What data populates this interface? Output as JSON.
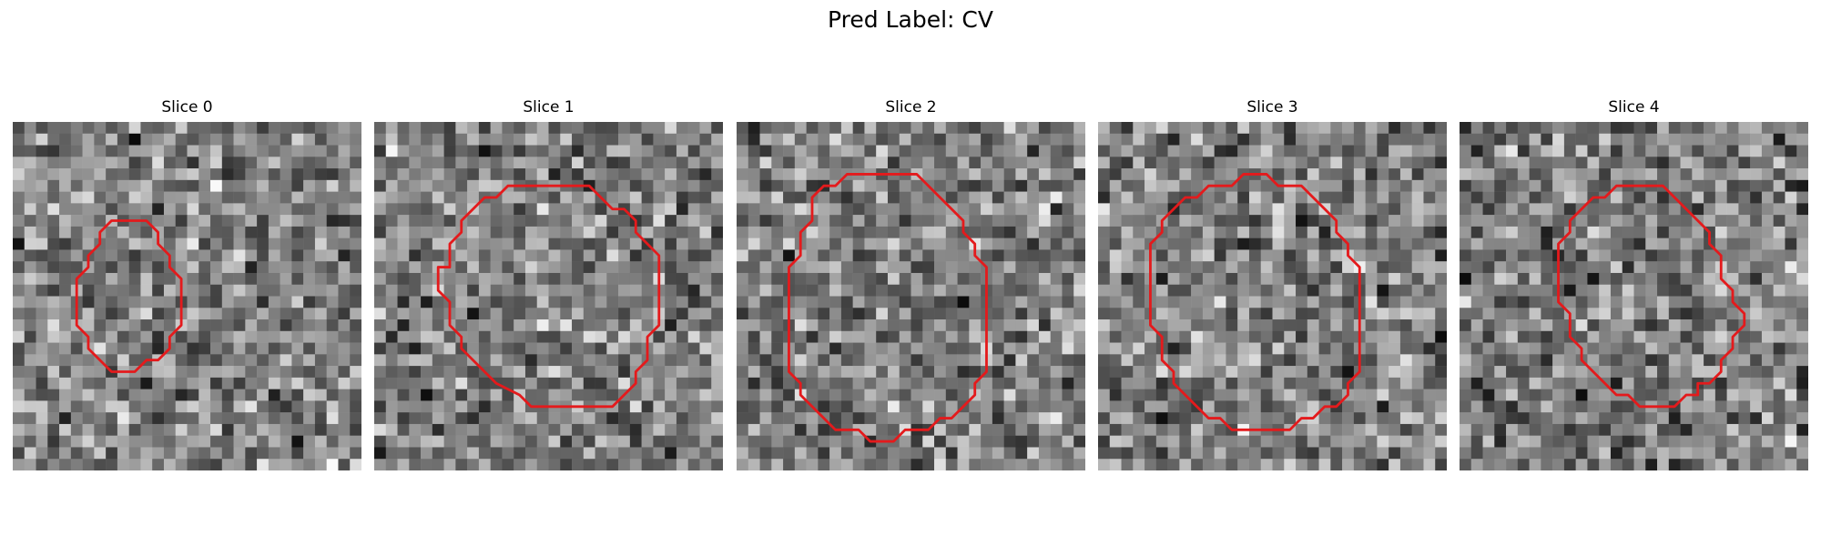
{
  "figure": {
    "suptitle": "Pred Label: CV",
    "contour_color": "#e41a1c",
    "panels": [
      {
        "title": "Slice 0",
        "seed": 11,
        "contour_vertices": [
          [
            10.5,
            8.5
          ],
          [
            11.5,
            8.5
          ],
          [
            12.5,
            9.5
          ],
          [
            12.5,
            10.5
          ],
          [
            13.5,
            11.5
          ],
          [
            13.5,
            12.5
          ],
          [
            14.5,
            13.5
          ],
          [
            14.5,
            17.5
          ],
          [
            13.5,
            18.5
          ],
          [
            13.5,
            19.5
          ],
          [
            12.5,
            20.5
          ],
          [
            11.5,
            20.5
          ],
          [
            10.5,
            21.5
          ],
          [
            8.5,
            21.5
          ],
          [
            7.5,
            20.5
          ],
          [
            6.5,
            19.5
          ],
          [
            6.5,
            18.5
          ],
          [
            5.5,
            17.5
          ],
          [
            5.5,
            13.5
          ],
          [
            6.5,
            12.5
          ],
          [
            6.5,
            11.5
          ],
          [
            7.5,
            10.5
          ],
          [
            7.5,
            9.5
          ],
          [
            8.5,
            8.5
          ]
        ]
      },
      {
        "title": "Slice 1",
        "seed": 23,
        "contour_vertices": [
          [
            12.5,
            5.5
          ],
          [
            18.5,
            5.5
          ],
          [
            19.5,
            6.5
          ],
          [
            20.5,
            7.5
          ],
          [
            21.5,
            7.5
          ],
          [
            22.5,
            8.5
          ],
          [
            22.5,
            9.5
          ],
          [
            23.5,
            10.5
          ],
          [
            24.5,
            11.5
          ],
          [
            24.5,
            17.5
          ],
          [
            23.5,
            18.5
          ],
          [
            23.5,
            20.5
          ],
          [
            22.5,
            21.5
          ],
          [
            22.5,
            22.5
          ],
          [
            21.5,
            23.5
          ],
          [
            20.5,
            24.5
          ],
          [
            13.5,
            24.5
          ],
          [
            12.5,
            23.5
          ],
          [
            10.5,
            22.5
          ],
          [
            8.5,
            20.5
          ],
          [
            7.5,
            19.5
          ],
          [
            7.5,
            18.5
          ],
          [
            6.5,
            17.5
          ],
          [
            6.5,
            15.5
          ],
          [
            5.5,
            14.5
          ],
          [
            5.5,
            12.5
          ],
          [
            6.5,
            12.5
          ],
          [
            6.5,
            10.5
          ],
          [
            7.5,
            9.5
          ],
          [
            7.5,
            8.5
          ],
          [
            9.5,
            6.5
          ],
          [
            10.5,
            6.5
          ],
          [
            11.5,
            5.5
          ]
        ]
      },
      {
        "title": "Slice 2",
        "seed": 37,
        "contour_vertices": [
          [
            9.5,
            4.5
          ],
          [
            15.5,
            4.5
          ],
          [
            16.5,
            5.5
          ],
          [
            17.5,
            6.5
          ],
          [
            18.5,
            7.5
          ],
          [
            19.5,
            8.5
          ],
          [
            19.5,
            9.5
          ],
          [
            20.5,
            10.5
          ],
          [
            20.5,
            11.5
          ],
          [
            21.5,
            12.5
          ],
          [
            21.5,
            21.5
          ],
          [
            20.5,
            22.5
          ],
          [
            20.5,
            23.5
          ],
          [
            19.5,
            24.5
          ],
          [
            18.5,
            25.5
          ],
          [
            17.5,
            25.5
          ],
          [
            16.5,
            26.5
          ],
          [
            14.5,
            26.5
          ],
          [
            13.5,
            27.5
          ],
          [
            11.5,
            27.5
          ],
          [
            10.5,
            26.5
          ],
          [
            8.5,
            26.5
          ],
          [
            7.5,
            25.5
          ],
          [
            6.5,
            24.5
          ],
          [
            5.5,
            23.5
          ],
          [
            5.5,
            22.5
          ],
          [
            4.5,
            21.5
          ],
          [
            4.5,
            12.5
          ],
          [
            5.5,
            11.5
          ],
          [
            5.5,
            9.5
          ],
          [
            6.5,
            8.5
          ],
          [
            6.5,
            6.5
          ],
          [
            7.5,
            5.5
          ],
          [
            8.5,
            5.5
          ]
        ]
      },
      {
        "title": "Slice 3",
        "seed": 41,
        "contour_vertices": [
          [
            12.5,
            4.5
          ],
          [
            14.5,
            4.5
          ],
          [
            15.5,
            5.5
          ],
          [
            17.5,
            5.5
          ],
          [
            18.5,
            6.5
          ],
          [
            19.5,
            7.5
          ],
          [
            20.5,
            8.5
          ],
          [
            20.5,
            9.5
          ],
          [
            21.5,
            10.5
          ],
          [
            21.5,
            11.5
          ],
          [
            22.5,
            12.5
          ],
          [
            22.5,
            21.5
          ],
          [
            21.5,
            22.5
          ],
          [
            21.5,
            23.5
          ],
          [
            20.5,
            24.5
          ],
          [
            19.5,
            24.5
          ],
          [
            18.5,
            25.5
          ],
          [
            17.5,
            25.5
          ],
          [
            16.5,
            26.5
          ],
          [
            11.5,
            26.5
          ],
          [
            10.5,
            25.5
          ],
          [
            9.5,
            25.5
          ],
          [
            8.5,
            24.5
          ],
          [
            7.5,
            23.5
          ],
          [
            6.5,
            22.5
          ],
          [
            6.5,
            21.5
          ],
          [
            5.5,
            20.5
          ],
          [
            5.5,
            18.5
          ],
          [
            4.5,
            17.5
          ],
          [
            4.5,
            10.5
          ],
          [
            5.5,
            9.5
          ],
          [
            5.5,
            8.5
          ],
          [
            6.5,
            7.5
          ],
          [
            7.5,
            6.5
          ],
          [
            8.5,
            6.5
          ],
          [
            9.5,
            5.5
          ],
          [
            11.5,
            5.5
          ]
        ]
      },
      {
        "title": "Slice 4",
        "seed": 53,
        "contour_vertices": [
          [
            13.5,
            5.5
          ],
          [
            17.5,
            5.5
          ],
          [
            18.5,
            6.5
          ],
          [
            19.5,
            7.5
          ],
          [
            20.5,
            8.5
          ],
          [
            21.5,
            9.5
          ],
          [
            21.5,
            10.5
          ],
          [
            22.5,
            11.5
          ],
          [
            22.5,
            13.5
          ],
          [
            23.5,
            14.5
          ],
          [
            23.5,
            15.5
          ],
          [
            24.5,
            16.5
          ],
          [
            24.5,
            17.5
          ],
          [
            23.5,
            18.5
          ],
          [
            23.5,
            19.5
          ],
          [
            22.5,
            20.5
          ],
          [
            22.5,
            21.5
          ],
          [
            21.5,
            22.5
          ],
          [
            20.5,
            22.5
          ],
          [
            20.5,
            23.5
          ],
          [
            19.5,
            23.5
          ],
          [
            18.5,
            24.5
          ],
          [
            15.5,
            24.5
          ],
          [
            14.5,
            23.5
          ],
          [
            13.5,
            23.5
          ],
          [
            12.5,
            22.5
          ],
          [
            11.5,
            21.5
          ],
          [
            10.5,
            20.5
          ],
          [
            10.5,
            19.5
          ],
          [
            9.5,
            18.5
          ],
          [
            9.5,
            16.5
          ],
          [
            8.5,
            15.5
          ],
          [
            8.5,
            10.5
          ],
          [
            9.5,
            9.5
          ],
          [
            9.5,
            8.5
          ],
          [
            10.5,
            7.5
          ],
          [
            11.5,
            6.5
          ],
          [
            12.5,
            6.5
          ]
        ]
      }
    ]
  }
}
